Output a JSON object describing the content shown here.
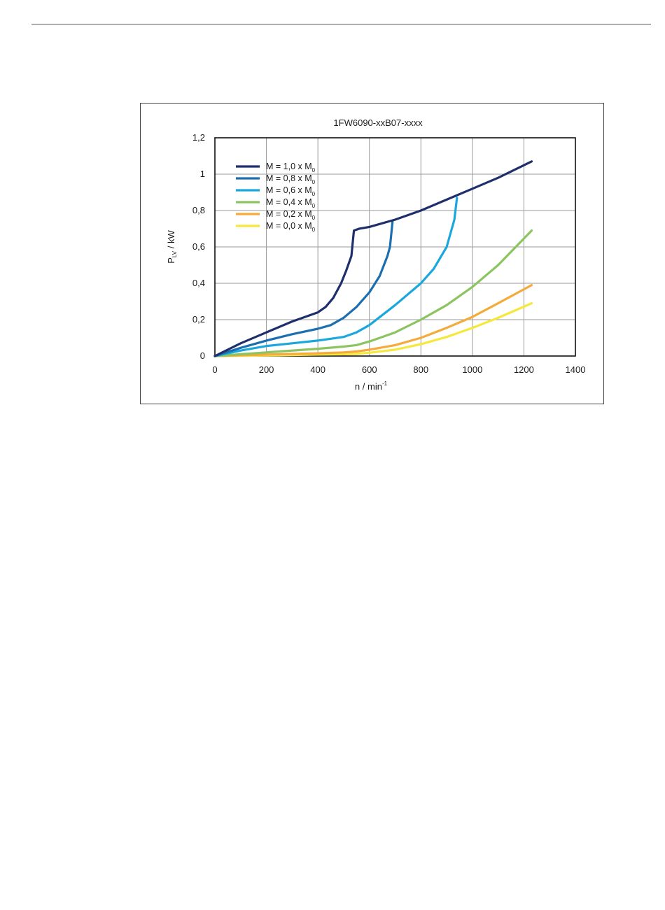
{
  "chart_data": {
    "type": "line",
    "title": "1FW6090-xxB07-xxxx",
    "xlabel": {
      "main": "n / min",
      "sup": "-1"
    },
    "ylabel": {
      "main": "P",
      "sub": "LV",
      "rest": " / kW"
    },
    "xlim": [
      0,
      1400
    ],
    "ylim": [
      0,
      1.2
    ],
    "xticks": [
      0,
      200,
      400,
      600,
      800,
      1000,
      1200,
      1400
    ],
    "xtick_labels": [
      "0",
      "200",
      "400",
      "600",
      "800",
      "1000",
      "1200",
      "1400"
    ],
    "yticks": [
      0,
      0.2,
      0.4,
      0.6,
      0.8,
      1,
      1.2
    ],
    "ytick_labels": [
      "0",
      "0,2",
      "0,4",
      "0,6",
      "0,8",
      "1",
      "1,2"
    ],
    "grid": true,
    "legend_position": "top-left",
    "series": [
      {
        "name": "M = 1,0 x M",
        "sub": "0",
        "color": "#1f2f6b",
        "x": [
          0,
          100,
          200,
          300,
          400,
          430,
          460,
          490,
          510,
          530,
          540,
          560,
          600,
          700,
          800,
          900,
          1000,
          1100,
          1230
        ],
        "y": [
          0,
          0.07,
          0.13,
          0.19,
          0.24,
          0.27,
          0.32,
          0.4,
          0.47,
          0.55,
          0.69,
          0.7,
          0.71,
          0.75,
          0.8,
          0.86,
          0.92,
          0.98,
          1.07
        ]
      },
      {
        "name": "M = 0,8 x M",
        "sub": "0",
        "color": "#1b6fb0",
        "x": [
          0,
          100,
          200,
          300,
          400,
          450,
          500,
          550,
          600,
          640,
          670,
          680,
          690
        ],
        "y": [
          0,
          0.045,
          0.085,
          0.12,
          0.15,
          0.17,
          0.21,
          0.27,
          0.35,
          0.44,
          0.55,
          0.6,
          0.74
        ]
      },
      {
        "name": "M = 0,6 x M",
        "sub": "0",
        "color": "#1aa8dc",
        "x": [
          0,
          100,
          200,
          300,
          400,
          500,
          550,
          600,
          700,
          800,
          850,
          900,
          930,
          940
        ],
        "y": [
          0,
          0.03,
          0.055,
          0.07,
          0.085,
          0.105,
          0.13,
          0.17,
          0.28,
          0.4,
          0.48,
          0.6,
          0.75,
          0.87
        ]
      },
      {
        "name": "M = 0,4 x M",
        "sub": "0",
        "color": "#8cc560",
        "x": [
          0,
          200,
          400,
          500,
          550,
          600,
          700,
          800,
          900,
          1000,
          1100,
          1230
        ],
        "y": [
          0,
          0.02,
          0.04,
          0.052,
          0.06,
          0.08,
          0.13,
          0.2,
          0.28,
          0.38,
          0.5,
          0.69
        ]
      },
      {
        "name": "M = 0,2 x M",
        "sub": "0",
        "color": "#f5aa3c",
        "x": [
          0,
          200,
          400,
          500,
          550,
          600,
          700,
          800,
          900,
          1000,
          1100,
          1230
        ],
        "y": [
          0,
          0.008,
          0.015,
          0.02,
          0.025,
          0.035,
          0.06,
          0.1,
          0.155,
          0.215,
          0.29,
          0.39
        ]
      },
      {
        "name": "M = 0,0 x M",
        "sub": "0",
        "color": "#f5e83c",
        "x": [
          0,
          200,
          400,
          500,
          550,
          600,
          700,
          800,
          900,
          1000,
          1100,
          1230
        ],
        "y": [
          0,
          0.003,
          0.008,
          0.01,
          0.012,
          0.018,
          0.035,
          0.065,
          0.105,
          0.155,
          0.21,
          0.29
        ]
      }
    ]
  }
}
